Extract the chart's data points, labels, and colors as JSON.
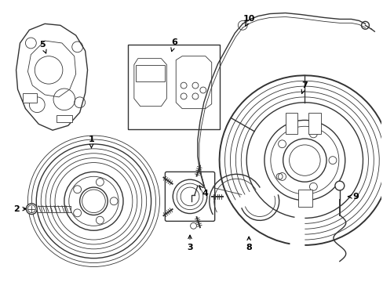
{
  "background_color": "#ffffff",
  "line_color": "#333333",
  "fig_width": 4.89,
  "fig_height": 3.6,
  "dpi": 100
}
